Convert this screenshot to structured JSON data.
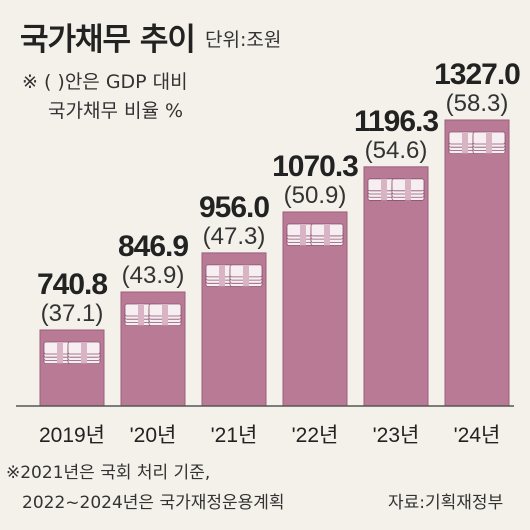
{
  "header": {
    "title": "국가채무 추이",
    "unit": "단위:조원",
    "note_line1": "※ (  )안은 GDP 대비",
    "note_line2": "국가채무 비율 %"
  },
  "footer": {
    "note_line1": "※2021년은 국회 처리 기준,",
    "note_line2": "2022~2024년은 국가재정운용계획",
    "source": "자료:기획재정부"
  },
  "colors": {
    "bar": "#b97a96",
    "bar_edge": "#9a5f7b",
    "background": "#f4f1ea",
    "baseline": "#555555"
  },
  "chart_data": {
    "type": "bar",
    "title": "국가채무 추이",
    "unit": "조원",
    "categories": [
      "2019년",
      "'20년",
      "'21년",
      "'22년",
      "'23년",
      "'24년"
    ],
    "values": [
      740.8,
      846.9,
      956.0,
      1070.3,
      1196.3,
      1327.0
    ],
    "value_labels": [
      "740.8",
      "846.9",
      "956.0",
      "1070.3",
      "1196.3",
      "1327.0"
    ],
    "ratio_labels": [
      "(37.1)",
      "(43.9)",
      "(47.3)",
      "(50.9)",
      "(54.6)",
      "(58.3)"
    ],
    "ratios": [
      37.1,
      43.9,
      47.3,
      50.9,
      54.6,
      58.3
    ],
    "grid": false,
    "legend": "none"
  }
}
